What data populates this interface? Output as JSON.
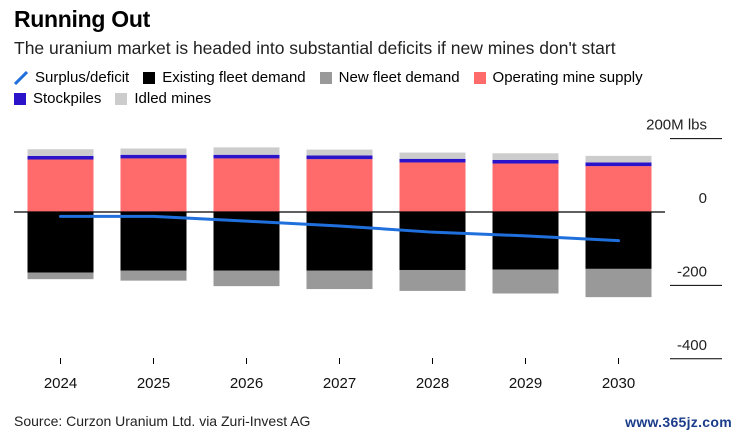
{
  "title": "Running Out",
  "subtitle": "The uranium market is headed into substantial deficits if new mines don't start",
  "source": "Source: Curzon Uranium Ltd. via Zuri-Invest AG",
  "watermark": "www.365jz.com",
  "legend": [
    {
      "name": "Surplus/deficit",
      "kind": "line",
      "color": "#1f6fdd"
    },
    {
      "name": "Existing fleet demand",
      "kind": "box",
      "color": "#000000"
    },
    {
      "name": "New fleet demand",
      "kind": "box",
      "color": "#999999"
    },
    {
      "name": "Operating mine supply",
      "kind": "box",
      "color": "#ff6b6b"
    },
    {
      "name": "Stockpiles",
      "kind": "box",
      "color": "#2b13c9"
    },
    {
      "name": "Idled mines",
      "kind": "box",
      "color": "#cccccc"
    }
  ],
  "chart_data": {
    "type": "bar",
    "stacked": true,
    "categories": [
      "2024",
      "2025",
      "2026",
      "2027",
      "2028",
      "2029",
      "2030"
    ],
    "ylim": [
      -400,
      200
    ],
    "yticks": [
      200,
      0,
      -200,
      -400
    ],
    "ytick_labels": [
      "200M lbs",
      "0",
      "-200",
      "-400"
    ],
    "series": [
      {
        "name": "Operating mine supply",
        "color": "#ff6b6b",
        "values": [
          143,
          146,
          146,
          144,
          135,
          132,
          125
        ]
      },
      {
        "name": "Stockpiles",
        "color": "#2b13c9",
        "values": [
          10,
          10,
          10,
          10,
          10,
          10,
          10
        ]
      },
      {
        "name": "Idled mines",
        "color": "#cccccc",
        "values": [
          18,
          17,
          20,
          16,
          17,
          18,
          18
        ]
      },
      {
        "name": "Existing fleet demand",
        "color": "#000000",
        "values": [
          -165,
          -160,
          -160,
          -160,
          -158,
          -157,
          -155
        ]
      },
      {
        "name": "New fleet demand",
        "color": "#999999",
        "values": [
          -18,
          -27,
          -42,
          -50,
          -57,
          -65,
          -77
        ]
      },
      {
        "name": "Surplus/deficit",
        "color": "#1f6fdd",
        "kind": "line",
        "values": [
          -12,
          -12,
          -25,
          -38,
          -55,
          -65,
          -78
        ]
      }
    ]
  }
}
